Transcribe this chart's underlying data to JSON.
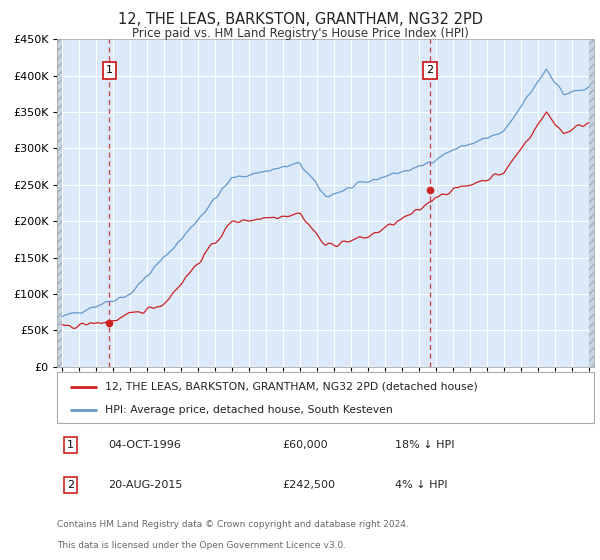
{
  "title": "12, THE LEAS, BARKSTON, GRANTHAM, NG32 2PD",
  "subtitle": "Price paid vs. HM Land Registry's House Price Index (HPI)",
  "sale1": {
    "date": "04-OCT-1996",
    "price": 60000,
    "year": 1996.78,
    "num": "1"
  },
  "sale2": {
    "date": "20-AUG-2015",
    "price": 242500,
    "year": 2015.64,
    "num": "2"
  },
  "legend1": "12, THE LEAS, BARKSTON, GRANTHAM, NG32 2PD (detached house)",
  "legend2": "HPI: Average price, detached house, South Kesteven",
  "footnote1": "Contains HM Land Registry data © Crown copyright and database right 2024.",
  "footnote2": "This data is licensed under the Open Government Licence v3.0.",
  "table_row1_date": "04-OCT-1996",
  "table_row1_price": "£60,000",
  "table_row1_pct": "18% ↓ HPI",
  "table_row2_date": "20-AUG-2015",
  "table_row2_price": "£242,500",
  "table_row2_pct": "4% ↓ HPI",
  "ylim": [
    0,
    450000
  ],
  "xlim_left": 1993.7,
  "xlim_right": 2025.3,
  "hatch_left_end": 1994.0,
  "hatch_right_start": 2025.0,
  "bg_color": "#dce9f8",
  "hatch_color": "#c8d4e0",
  "red_color": "#cc2222",
  "blue_color": "#6699cc",
  "grid_color": "#ffffff",
  "label_box_color": "#cc2222"
}
